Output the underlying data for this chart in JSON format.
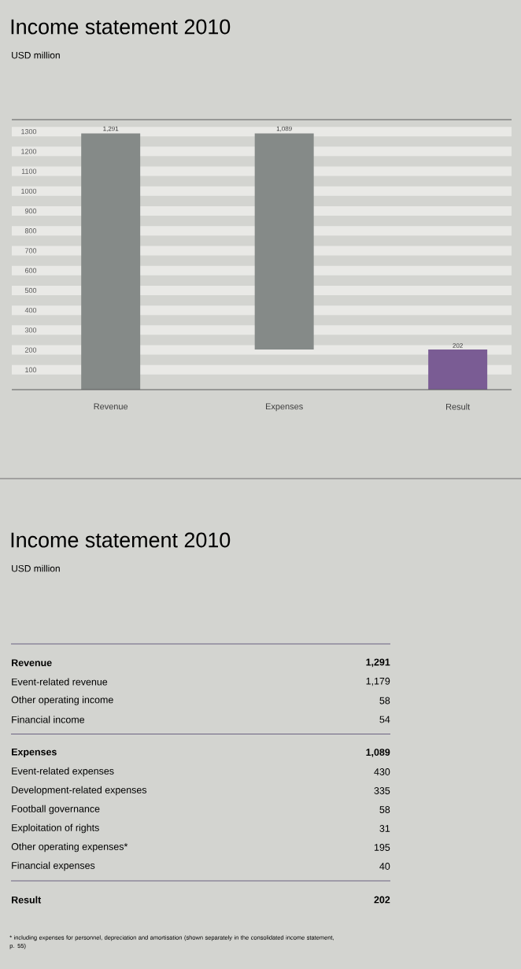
{
  "chart_data": [
    {
      "type": "bar",
      "title": "Income statement 2010",
      "subtitle": "USD million",
      "categories": [
        "Revenue",
        "Expenses",
        "Result"
      ],
      "values": [
        1291,
        1089,
        202
      ],
      "base": [
        0,
        202,
        0
      ],
      "colors": [
        "#858a88",
        "#858a88",
        "#7a5c94"
      ],
      "value_labels": [
        "1,291",
        "1,089",
        "202"
      ],
      "ylim": [
        0,
        1360
      ],
      "yticks": [
        100,
        200,
        300,
        400,
        500,
        600,
        700,
        800,
        900,
        1000,
        1100,
        1200,
        1300
      ],
      "grid": "y"
    },
    {
      "type": "other",
      "title": "Income statement 2010",
      "subtitle": "USD million",
      "categories": [
        "**Revenue**",
        "Event-related revenue",
        "Other operating income",
        "Financial income",
        "**Expenses**",
        "Event-related expenses",
        "Development-related expenses",
        "Football governance",
        "Exploitation of rights",
        "Other operating expenses*",
        "Financial expenses",
        "**Result**"
      ],
      "value_labels": [
        "**1,291**",
        "1,179",
        "58",
        "54",
        "**1,089**",
        "430",
        "335",
        "58",
        "31",
        "195",
        "40",
        "**202**"
      ],
      "annotations": [
        "* including expenses for personnel, depreciation and amortisation (shown separately in the consolidated income statement, p. 55)"
      ]
    }
  ]
}
